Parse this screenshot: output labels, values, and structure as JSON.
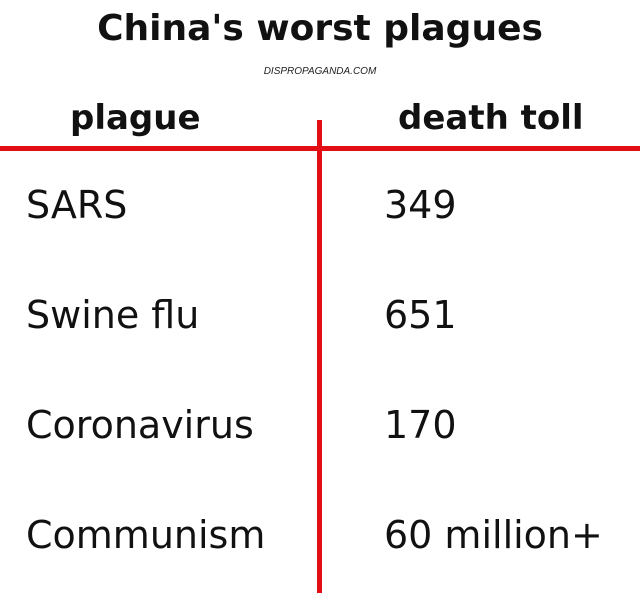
{
  "title": "China's worst plagues",
  "source": "DISPROPAGANDA.COM",
  "headers": {
    "plague": "plague",
    "death_toll": "death toll"
  },
  "rows": [
    {
      "plague": "SARS",
      "death_toll": "349"
    },
    {
      "plague": "Swine flu",
      "death_toll": "651"
    },
    {
      "plague": "Coronavirus",
      "death_toll": "170"
    },
    {
      "plague": "Communism",
      "death_toll": "60 million+"
    }
  ],
  "colors": {
    "divider": "#e30e13",
    "text": "#111111",
    "background": "#ffffff"
  }
}
